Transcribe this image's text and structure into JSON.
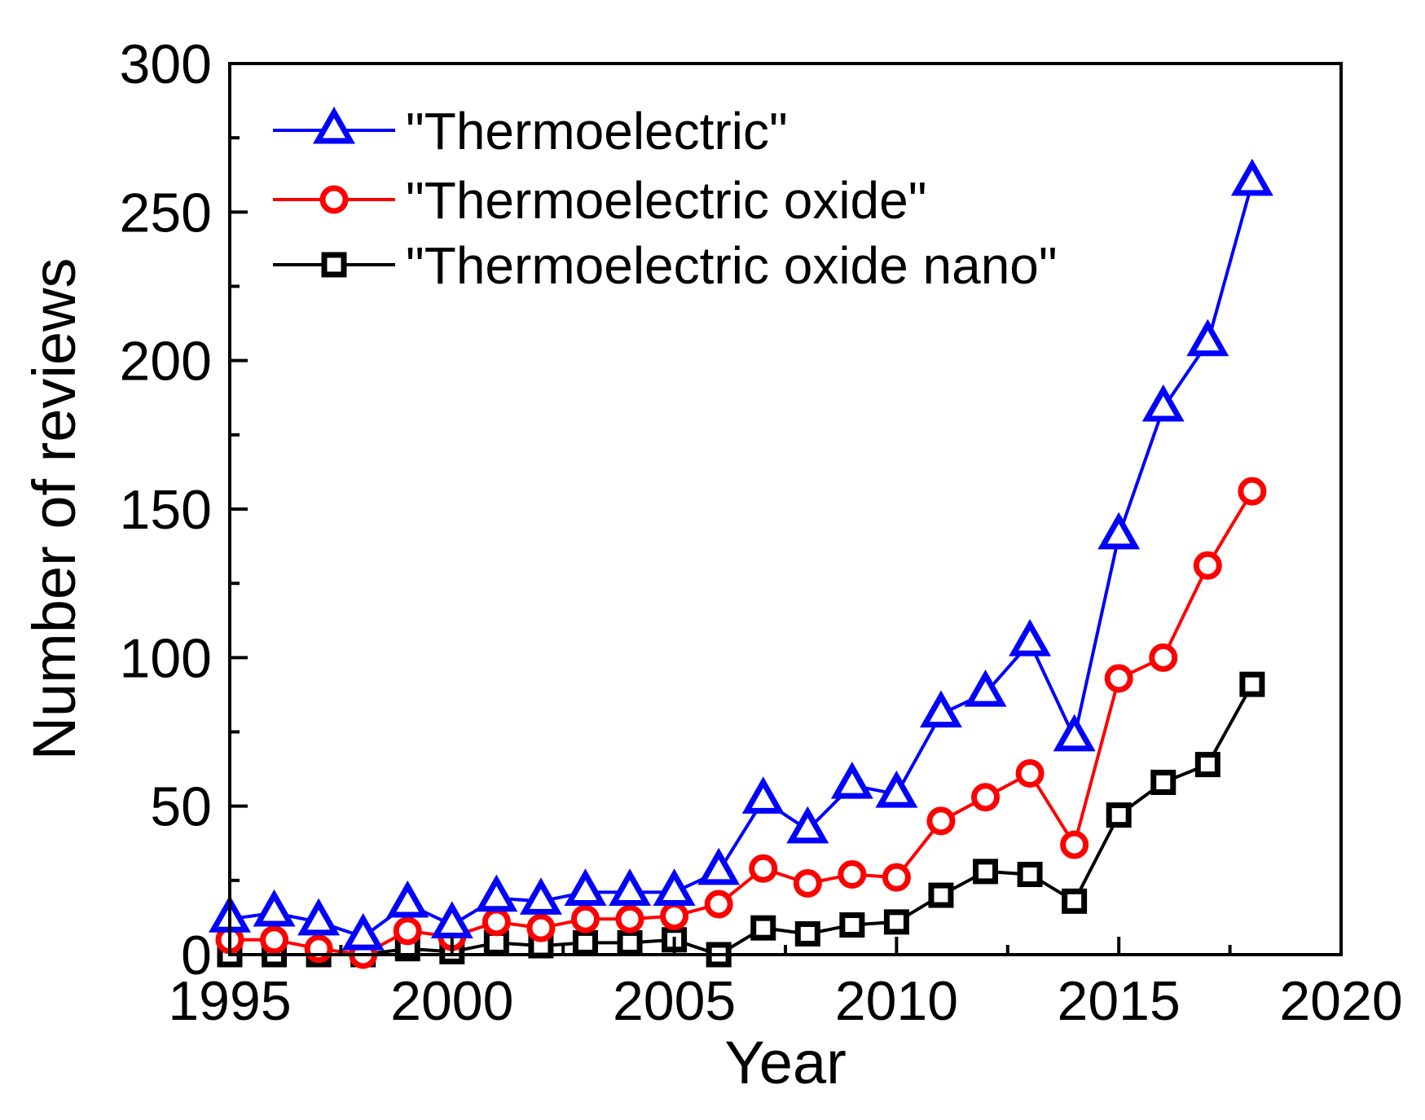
{
  "chart_data": {
    "type": "line",
    "xlabel": "Year",
    "ylabel": "Number of reviews",
    "xlim": [
      1995,
      2020
    ],
    "ylim": [
      0,
      300
    ],
    "x_ticks": [
      1995,
      2000,
      2005,
      2010,
      2015,
      2020
    ],
    "y_ticks": [
      0,
      50,
      100,
      150,
      200,
      250,
      300
    ],
    "legend_position": "top-left",
    "grid": false,
    "x": [
      1995,
      1996,
      1997,
      1998,
      1999,
      2000,
      2001,
      2002,
      2003,
      2004,
      2005,
      2006,
      2007,
      2008,
      2009,
      2010,
      2011,
      2012,
      2013,
      2014,
      2015,
      2016,
      2017,
      2018
    ],
    "series": [
      {
        "name": "\"Thermoelectric\"",
        "color": "#0000ff",
        "marker": "triangle",
        "values": [
          12,
          14,
          11,
          6,
          17,
          10,
          19,
          18,
          21,
          21,
          21,
          28,
          52,
          42,
          57,
          54,
          81,
          88,
          105,
          73,
          141,
          184,
          206,
          260
        ]
      },
      {
        "name": "\"Thermoelectric oxide\"",
        "color": "#ff0000",
        "marker": "circle",
        "values": [
          5,
          5,
          2,
          0,
          8,
          6,
          11,
          9,
          12,
          12,
          13,
          17,
          29,
          24,
          27,
          26,
          45,
          53,
          61,
          37,
          93,
          100,
          131,
          156
        ]
      },
      {
        "name": "\"Thermoelectric oxide nano\"",
        "color": "#000000",
        "marker": "square",
        "values": [
          0,
          0,
          0,
          0,
          2,
          1,
          4,
          3,
          4,
          4,
          5,
          0,
          9,
          7,
          10,
          11,
          20,
          28,
          27,
          18,
          47,
          58,
          64,
          91
        ]
      }
    ]
  }
}
